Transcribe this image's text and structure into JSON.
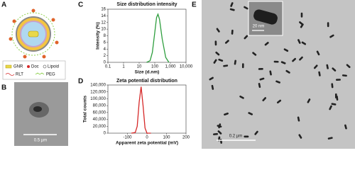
{
  "panels": {
    "a": "A",
    "b": "B",
    "c": "C",
    "d": "D",
    "e": "E"
  },
  "legend": {
    "gnr": "GNR",
    "doc": "Doc",
    "lipoid": "Lipoid",
    "rlt": "RLT",
    "peg": "PEG"
  },
  "scale_bars": {
    "b": "0.5 µm",
    "e": "0.2 µm",
    "inset": "20 nm"
  },
  "chart_data": [
    {
      "type": "line",
      "title": "Size distribution intensity",
      "x_label": "Size (d.nm)",
      "y_label": "Intensity (%)",
      "xscale": "log",
      "xlim": [
        0.1,
        10000
      ],
      "xticks": [
        0.1,
        1,
        10,
        100,
        {
          "value": 1000,
          "label": "1,000"
        },
        {
          "value": 10000,
          "label": "10,000"
        }
      ],
      "ylim": [
        0,
        16
      ],
      "yticks": [
        0,
        2,
        4,
        6,
        8,
        10,
        12,
        14,
        16
      ],
      "x": [
        30,
        50,
        70,
        100,
        130,
        160,
        200,
        300,
        500,
        800
      ],
      "values": [
        0,
        0.5,
        3,
        9,
        13.5,
        14.5,
        13,
        7,
        1.5,
        0
      ],
      "color": "#2e9e3e"
    },
    {
      "type": "line",
      "title": "Zeta potential distribution",
      "x_label": "Apparent zeta potential (mV)",
      "y_label": "Total counts",
      "xscale": "linear",
      "xlim": [
        -200,
        200
      ],
      "xticks": [
        -100,
        0,
        100,
        200
      ],
      "ylim": [
        0,
        140000
      ],
      "yticks": [
        0,
        {
          "value": 20000,
          "label": "20,000"
        },
        {
          "value": 40000,
          "label": "40,000"
        },
        {
          "value": 60000,
          "label": "60,000"
        },
        {
          "value": 80000,
          "label": "80,000"
        },
        {
          "value": 100000,
          "label": "100,000"
        },
        {
          "value": 120000,
          "label": "120,000"
        },
        {
          "value": 140000,
          "label": "140,000"
        }
      ],
      "x": [
        -80,
        -60,
        -50,
        -40,
        -30,
        -20,
        -10,
        0,
        20
      ],
      "values": [
        0,
        2000,
        20000,
        90000,
        135000,
        80000,
        15000,
        0,
        0
      ],
      "color": "#d62828"
    }
  ]
}
